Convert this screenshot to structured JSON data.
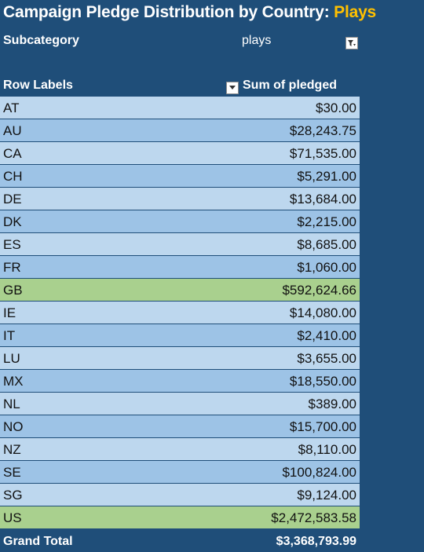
{
  "title": {
    "prefix": "Campaign Pledge Distribution by Country: ",
    "highlight": "Plays"
  },
  "colors": {
    "background": "#1f4e79",
    "row_light": "#bdd7ee",
    "row_mid": "#9dc3e6",
    "row_highlight": "#a9d08e",
    "title_highlight": "#ffc000"
  },
  "filter": {
    "label": "Subcategory",
    "value": "plays",
    "icon": "filter-dropdown-icon"
  },
  "table": {
    "header_label": "Row Labels",
    "header_value": "Sum of pledged",
    "header_icon": "dropdown-arrow-icon",
    "rows": [
      {
        "label": "AT",
        "value": "$30.00",
        "style": "light"
      },
      {
        "label": "AU",
        "value": "$28,243.75",
        "style": "mid"
      },
      {
        "label": "CA",
        "value": "$71,535.00",
        "style": "light"
      },
      {
        "label": "CH",
        "value": "$5,291.00",
        "style": "mid"
      },
      {
        "label": "DE",
        "value": "$13,684.00",
        "style": "light"
      },
      {
        "label": "DK",
        "value": "$2,215.00",
        "style": "mid"
      },
      {
        "label": "ES",
        "value": "$8,685.00",
        "style": "light"
      },
      {
        "label": "FR",
        "value": "$1,060.00",
        "style": "mid"
      },
      {
        "label": "GB",
        "value": "$592,624.66",
        "style": "green"
      },
      {
        "label": "IE",
        "value": "$14,080.00",
        "style": "light"
      },
      {
        "label": "IT",
        "value": "$2,410.00",
        "style": "mid"
      },
      {
        "label": "LU",
        "value": "$3,655.00",
        "style": "light"
      },
      {
        "label": "MX",
        "value": "$18,550.00",
        "style": "mid"
      },
      {
        "label": "NL",
        "value": "$389.00",
        "style": "light"
      },
      {
        "label": "NO",
        "value": "$15,700.00",
        "style": "mid"
      },
      {
        "label": "NZ",
        "value": "$8,110.00",
        "style": "light"
      },
      {
        "label": "SE",
        "value": "$100,824.00",
        "style": "mid"
      },
      {
        "label": "SG",
        "value": "$9,124.00",
        "style": "light"
      },
      {
        "label": "US",
        "value": "$2,472,583.58",
        "style": "green"
      }
    ],
    "total_label": "Grand Total",
    "total_value": "$3,368,793.99"
  }
}
